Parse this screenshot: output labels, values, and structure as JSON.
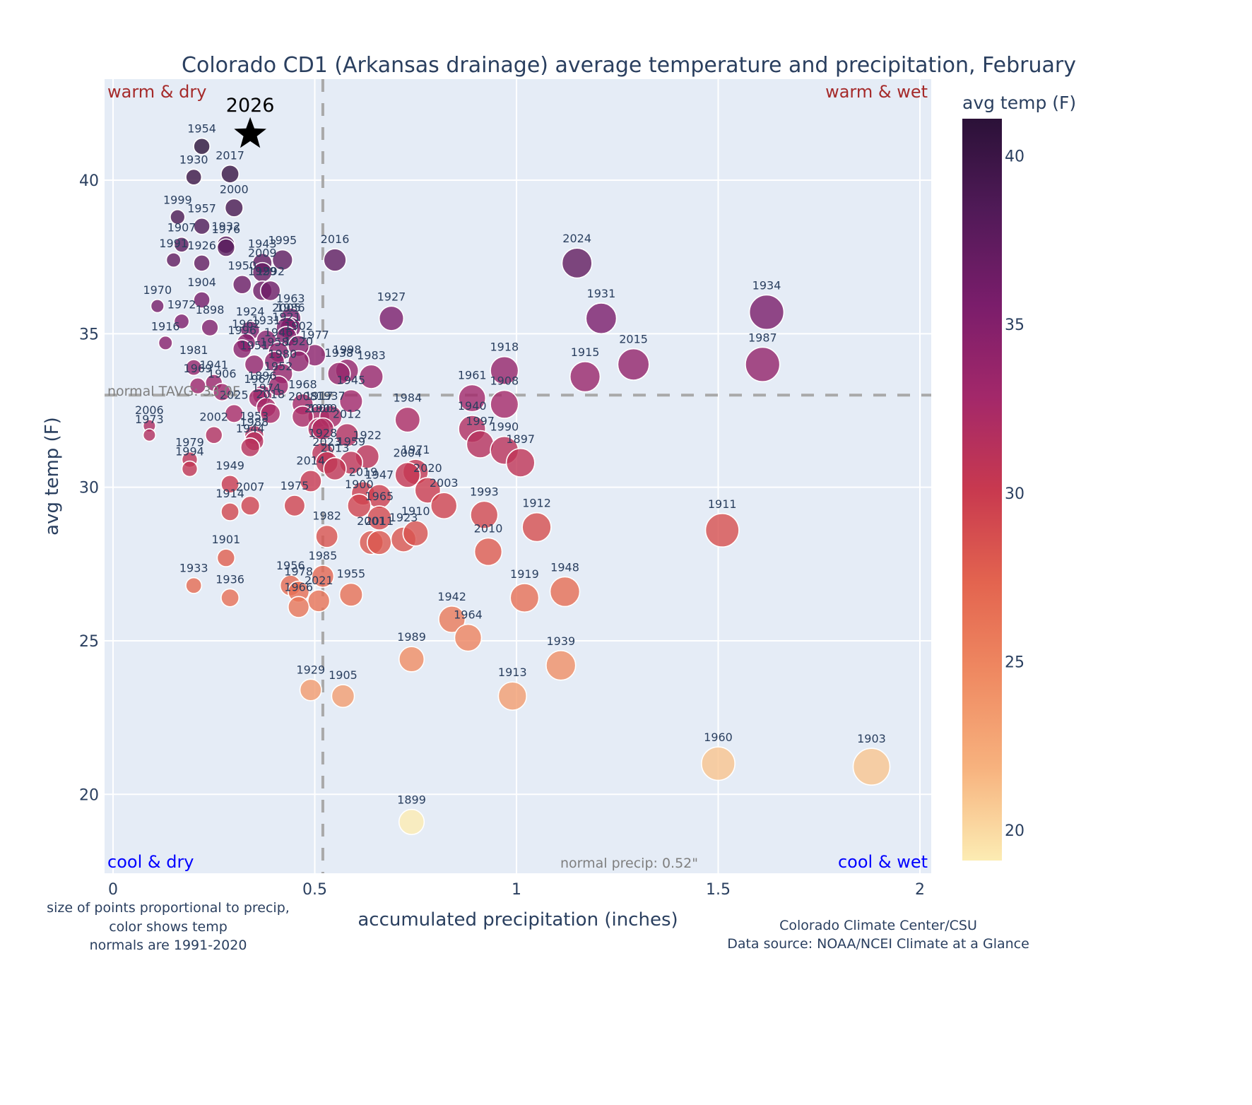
{
  "chart_data": {
    "type": "scatter",
    "title": "Colorado CD1 (Arkansas drainage) average temperature and precipitation, February",
    "xlabel": "accumulated precipitation (inches)",
    "ylabel": "avg temp (F)",
    "xlim": [
      -0.021,
      2.028
    ],
    "ylim": [
      17.43,
      43.29
    ],
    "xticks": [
      0,
      0.5,
      1,
      1.5,
      2
    ],
    "xtick_labels": [
      "0",
      "0.5",
      "1",
      "1.5",
      "2"
    ],
    "yticks": [
      20,
      25,
      30,
      35,
      40
    ],
    "ytick_labels": [
      "20",
      "25",
      "30",
      "35",
      "40"
    ],
    "grid": true,
    "colorbar": {
      "title": "avg temp (F)",
      "range": [
        19.1,
        41.1
      ],
      "ticks": [
        20,
        25,
        30,
        35,
        40
      ],
      "tick_labels": [
        "20",
        "25",
        "30",
        "35",
        "40"
      ],
      "colorscale": [
        "#fcecb3",
        "#f7b27e",
        "#ef8a62",
        "#e3644f",
        "#c8394f",
        "#a3286a",
        "#7a1d6b",
        "#511a58",
        "#2b1138"
      ]
    },
    "size_encoding": "precipitation",
    "color_encoding": "avg temp",
    "reference_lines": {
      "normal_temp": {
        "value": 33.0,
        "label": "normal TAVG: 33.0F"
      },
      "normal_precip": {
        "value": 0.52,
        "label": "normal precip: 0.52\""
      }
    },
    "quadrant_labels": {
      "top_left": {
        "text": "warm & dry",
        "color": "#a52a2a"
      },
      "top_right": {
        "text": "warm & wet",
        "color": "#a52a2a"
      },
      "bottom_left": {
        "text": "cool & dry",
        "color": "#0000ff"
      },
      "bottom_right": {
        "text": "cool & wet",
        "color": "#0000ff"
      }
    },
    "highlight": {
      "label": "2026",
      "precip": 0.34,
      "temp": 41.5,
      "marker": "star"
    },
    "points": [
      {
        "year": "1954",
        "precip": 0.22,
        "temp": 41.1
      },
      {
        "year": "1930",
        "precip": 0.2,
        "temp": 40.1
      },
      {
        "year": "2017",
        "precip": 0.29,
        "temp": 40.2
      },
      {
        "year": "2000",
        "precip": 0.3,
        "temp": 39.1
      },
      {
        "year": "1999",
        "precip": 0.16,
        "temp": 38.8
      },
      {
        "year": "1957",
        "precip": 0.22,
        "temp": 38.5
      },
      {
        "year": "1907",
        "precip": 0.17,
        "temp": 37.9
      },
      {
        "year": "1932",
        "precip": 0.28,
        "temp": 37.9
      },
      {
        "year": "1976",
        "precip": 0.28,
        "temp": 37.8
      },
      {
        "year": "1991",
        "precip": 0.15,
        "temp": 37.4
      },
      {
        "year": "1926",
        "precip": 0.22,
        "temp": 37.3
      },
      {
        "year": "1943",
        "precip": 0.37,
        "temp": 37.3
      },
      {
        "year": "1995",
        "precip": 0.42,
        "temp": 37.4
      },
      {
        "year": "2009",
        "precip": 0.37,
        "temp": 37.0
      },
      {
        "year": "2016",
        "precip": 0.55,
        "temp": 37.4
      },
      {
        "year": "1950",
        "precip": 0.32,
        "temp": 36.6
      },
      {
        "year": "1929b",
        "precip": 0.37,
        "temp": 36.4
      },
      {
        "year": "1992",
        "precip": 0.39,
        "temp": 36.4
      },
      {
        "year": "1970",
        "precip": 0.11,
        "temp": 35.9
      },
      {
        "year": "1904",
        "precip": 0.22,
        "temp": 36.1
      },
      {
        "year": "1972",
        "precip": 0.17,
        "temp": 35.4
      },
      {
        "year": "1898",
        "precip": 0.24,
        "temp": 35.2
      },
      {
        "year": "1963",
        "precip": 0.44,
        "temp": 35.5
      },
      {
        "year": "1986",
        "precip": 0.44,
        "temp": 35.2
      },
      {
        "year": "1924",
        "precip": 0.34,
        "temp": 35.1
      },
      {
        "year": "2005",
        "precip": 0.43,
        "temp": 35.2
      },
      {
        "year": "1962",
        "precip": 0.33,
        "temp": 34.7
      },
      {
        "year": "1996",
        "precip": 0.32,
        "temp": 34.5
      },
      {
        "year": "1931b",
        "precip": 0.38,
        "temp": 34.8
      },
      {
        "year": "1921",
        "precip": 0.43,
        "temp": 34.9
      },
      {
        "year": "1946",
        "precip": 0.41,
        "temp": 34.4
      },
      {
        "year": "1977",
        "precip": 0.5,
        "temp": 34.3
      },
      {
        "year": "1958",
        "precip": 0.4,
        "temp": 34.1
      },
      {
        "year": "1902",
        "precip": 0.46,
        "temp": 34.6
      },
      {
        "year": "1916",
        "precip": 0.13,
        "temp": 34.7
      },
      {
        "year": "1951",
        "precip": 0.35,
        "temp": 34.0
      },
      {
        "year": "1981",
        "precip": 0.2,
        "temp": 33.9
      },
      {
        "year": "1941",
        "precip": 0.25,
        "temp": 33.4
      },
      {
        "year": "1969",
        "precip": 0.21,
        "temp": 33.3
      },
      {
        "year": "1906",
        "precip": 0.27,
        "temp": 33.1
      },
      {
        "year": "1980",
        "precip": 0.42,
        "temp": 33.7
      },
      {
        "year": "1920",
        "precip": 0.46,
        "temp": 34.1
      },
      {
        "year": "1896",
        "precip": 0.37,
        "temp": 33.0
      },
      {
        "year": "1967",
        "precip": 0.36,
        "temp": 32.9
      },
      {
        "year": "1974",
        "precip": 0.38,
        "temp": 32.6
      },
      {
        "year": "2025",
        "precip": 0.3,
        "temp": 32.4
      },
      {
        "year": "2018",
        "precip": 0.39,
        "temp": 32.4
      },
      {
        "year": "1952",
        "precip": 0.41,
        "temp": 33.3
      },
      {
        "year": "1968",
        "precip": 0.47,
        "temp": 32.7
      },
      {
        "year": "1998",
        "precip": 0.58,
        "temp": 33.8
      },
      {
        "year": "1938",
        "precip": 0.56,
        "temp": 33.7
      },
      {
        "year": "1983",
        "precip": 0.64,
        "temp": 33.6
      },
      {
        "year": "1945",
        "precip": 0.59,
        "temp": 32.8
      },
      {
        "year": "1917",
        "precip": 0.51,
        "temp": 32.3
      },
      {
        "year": "2008",
        "precip": 0.47,
        "temp": 32.3
      },
      {
        "year": "1937",
        "precip": 0.54,
        "temp": 32.3
      },
      {
        "year": "2006",
        "precip": 0.09,
        "temp": 32.0
      },
      {
        "year": "1973",
        "precip": 0.09,
        "temp": 31.7
      },
      {
        "year": "2002",
        "precip": 0.25,
        "temp": 31.7
      },
      {
        "year": "1953",
        "precip": 0.35,
        "temp": 31.7
      },
      {
        "year": "1988",
        "precip": 0.35,
        "temp": 31.5
      },
      {
        "year": "1944",
        "precip": 0.34,
        "temp": 31.3
      },
      {
        "year": "2000b",
        "precip": 0.51,
        "temp": 31.9
      },
      {
        "year": "1909",
        "precip": 0.52,
        "temp": 31.9
      },
      {
        "year": "2012",
        "precip": 0.58,
        "temp": 31.7
      },
      {
        "year": "1928",
        "precip": 0.52,
        "temp": 31.1
      },
      {
        "year": "1922",
        "precip": 0.63,
        "temp": 31.0
      },
      {
        "year": "2023",
        "precip": 0.53,
        "temp": 30.8
      },
      {
        "year": "1959",
        "precip": 0.59,
        "temp": 30.8
      },
      {
        "year": "2013",
        "precip": 0.55,
        "temp": 30.6
      },
      {
        "year": "1984",
        "precip": 0.73,
        "temp": 32.2
      },
      {
        "year": "1961",
        "precip": 0.89,
        "temp": 32.9
      },
      {
        "year": "1918",
        "precip": 0.97,
        "temp": 33.8
      },
      {
        "year": "1908",
        "precip": 0.97,
        "temp": 32.7
      },
      {
        "year": "1940",
        "precip": 0.89,
        "temp": 31.9
      },
      {
        "year": "1997",
        "precip": 0.91,
        "temp": 31.4
      },
      {
        "year": "1990",
        "precip": 0.97,
        "temp": 31.2
      },
      {
        "year": "1897",
        "precip": 1.01,
        "temp": 30.8
      },
      {
        "year": "1979",
        "precip": 0.19,
        "temp": 30.9
      },
      {
        "year": "1994",
        "precip": 0.19,
        "temp": 30.6
      },
      {
        "year": "1949",
        "precip": 0.29,
        "temp": 30.1
      },
      {
        "year": "2014",
        "precip": 0.49,
        "temp": 30.2
      },
      {
        "year": "1971",
        "precip": 0.75,
        "temp": 30.5
      },
      {
        "year": "2004",
        "precip": 0.73,
        "temp": 30.4
      },
      {
        "year": "2019",
        "precip": 0.62,
        "temp": 29.8
      },
      {
        "year": "1947",
        "precip": 0.66,
        "temp": 29.7
      },
      {
        "year": "2020",
        "precip": 0.78,
        "temp": 29.9
      },
      {
        "year": "2003",
        "precip": 0.82,
        "temp": 29.4
      },
      {
        "year": "1914",
        "precip": 0.29,
        "temp": 29.2
      },
      {
        "year": "2007",
        "precip": 0.34,
        "temp": 29.4
      },
      {
        "year": "1975",
        "precip": 0.45,
        "temp": 29.4
      },
      {
        "year": "1900",
        "precip": 0.61,
        "temp": 29.4
      },
      {
        "year": "1965",
        "precip": 0.66,
        "temp": 29.0
      },
      {
        "year": "1993",
        "precip": 0.92,
        "temp": 29.1
      },
      {
        "year": "1912",
        "precip": 1.05,
        "temp": 28.7
      },
      {
        "year": "1982",
        "precip": 0.53,
        "temp": 28.4
      },
      {
        "year": "2001",
        "precip": 0.64,
        "temp": 28.2
      },
      {
        "year": "2011",
        "precip": 0.66,
        "temp": 28.2
      },
      {
        "year": "1923",
        "precip": 0.72,
        "temp": 28.3
      },
      {
        "year": "1910",
        "precip": 0.75,
        "temp": 28.5
      },
      {
        "year": "2010",
        "precip": 0.93,
        "temp": 27.9
      },
      {
        "year": "1901",
        "precip": 0.28,
        "temp": 27.7
      },
      {
        "year": "1985",
        "precip": 0.52,
        "temp": 27.1
      },
      {
        "year": "1956",
        "precip": 0.44,
        "temp": 26.8
      },
      {
        "year": "1978",
        "precip": 0.46,
        "temp": 26.6
      },
      {
        "year": "2021",
        "precip": 0.51,
        "temp": 26.3
      },
      {
        "year": "1966",
        "precip": 0.46,
        "temp": 26.1
      },
      {
        "year": "1955",
        "precip": 0.59,
        "temp": 26.5
      },
      {
        "year": "1933",
        "precip": 0.2,
        "temp": 26.8
      },
      {
        "year": "1936",
        "precip": 0.29,
        "temp": 26.4
      },
      {
        "year": "1919",
        "precip": 1.02,
        "temp": 26.4
      },
      {
        "year": "1948",
        "precip": 1.12,
        "temp": 26.6
      },
      {
        "year": "1942",
        "precip": 0.84,
        "temp": 25.7
      },
      {
        "year": "1964",
        "precip": 0.88,
        "temp": 25.1
      },
      {
        "year": "1989",
        "precip": 0.74,
        "temp": 24.4
      },
      {
        "year": "1939",
        "precip": 1.11,
        "temp": 24.2
      },
      {
        "year": "1929",
        "precip": 0.49,
        "temp": 23.4
      },
      {
        "year": "1905",
        "precip": 0.57,
        "temp": 23.2
      },
      {
        "year": "1913",
        "precip": 0.99,
        "temp": 23.2
      },
      {
        "year": "1899",
        "precip": 0.74,
        "temp": 19.1
      },
      {
        "year": "2024",
        "precip": 1.15,
        "temp": 37.3
      },
      {
        "year": "1931",
        "precip": 1.21,
        "temp": 35.5
      },
      {
        "year": "1927",
        "precip": 0.69,
        "temp": 35.5
      },
      {
        "year": "1915",
        "precip": 1.17,
        "temp": 33.6
      },
      {
        "year": "2015",
        "precip": 1.29,
        "temp": 34.0
      },
      {
        "year": "1934",
        "precip": 1.62,
        "temp": 35.7
      },
      {
        "year": "1987",
        "precip": 1.61,
        "temp": 34.0
      },
      {
        "year": "1911",
        "precip": 1.51,
        "temp": 28.6
      },
      {
        "year": "1960",
        "precip": 1.5,
        "temp": 21.0
      },
      {
        "year": "1903",
        "precip": 1.88,
        "temp": 20.9
      }
    ]
  },
  "notes": {
    "left_lines": [
      "size of points proportional to precip,",
      "color shows temp",
      "normals are 1991-2020"
    ],
    "right_lines": [
      "Colorado Climate Center/CSU",
      "Data source: NOAA/NCEI Climate at a Glance"
    ]
  }
}
